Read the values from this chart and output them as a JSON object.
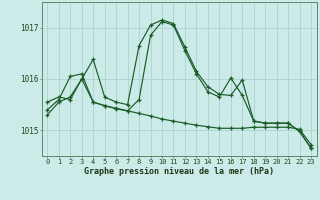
{
  "background_color": "#cceae8",
  "grid_color": "#aad4d0",
  "line_color": "#1a5c28",
  "xlabel": "Graphe pression niveau de la mer (hPa)",
  "hours": [
    0,
    1,
    2,
    3,
    4,
    5,
    6,
    7,
    8,
    9,
    10,
    11,
    12,
    13,
    14,
    15,
    16,
    17,
    18,
    19,
    20,
    21,
    22,
    23
  ],
  "series1": [
    1015.55,
    1015.65,
    1015.6,
    1016.0,
    1015.55,
    1015.48,
    1015.42,
    1015.38,
    1015.33,
    1015.28,
    1015.22,
    1015.18,
    1015.14,
    1015.1,
    1015.07,
    1015.04,
    1015.04,
    1015.04,
    1015.06,
    1015.06,
    1015.06,
    1015.06,
    1015.02,
    1014.72
  ],
  "series2": [
    1015.4,
    1015.6,
    1016.05,
    1016.1,
    1015.55,
    1015.48,
    1015.43,
    1015.38,
    1015.6,
    1016.85,
    1017.12,
    1017.05,
    1016.55,
    1016.1,
    1015.75,
    1015.65,
    1016.02,
    1015.68,
    1015.18,
    1015.14,
    1015.14,
    1015.14,
    1014.98,
    1014.65
  ],
  "series3": [
    1015.3,
    1015.55,
    1015.65,
    1016.0,
    1016.38,
    1015.65,
    1015.55,
    1015.5,
    1016.65,
    1017.05,
    1017.15,
    1017.08,
    1016.62,
    1016.15,
    1015.85,
    1015.7,
    1015.68,
    1015.98,
    1015.18,
    1015.14,
    1015.14,
    1015.14,
    1014.98,
    1014.65
  ],
  "ylim_min": 1014.5,
  "ylim_max": 1017.5,
  "ytick_positions": [
    1015.0,
    1016.0,
    1017.0
  ],
  "ytick_labels": [
    "1015",
    "1016",
    "1017"
  ],
  "xlabel_fontsize": 6.0,
  "tick_fontsize": 5.0,
  "ytick_fontsize": 5.5
}
